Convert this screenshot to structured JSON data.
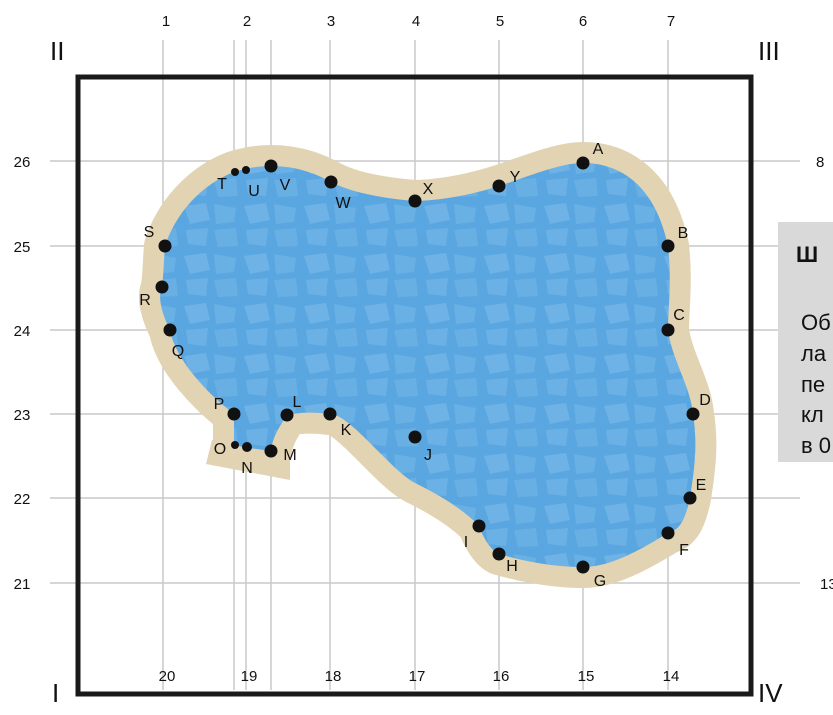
{
  "colors": {
    "water": "#5aa6e0",
    "water_tile": "#7dbcea",
    "deck": "#e2d3b3",
    "grid": "#c8c8c8",
    "frame": "#1a1a1a",
    "point": "#111111",
    "callout_bg": "#d9d9d9"
  },
  "corners": {
    "top_left": "II",
    "top_right": "III",
    "bottom_left": "I",
    "bottom_right": "IV"
  },
  "top_axis": [
    "1",
    "2",
    "3",
    "4",
    "5",
    "6",
    "7"
  ],
  "bottom_axis": [
    "20",
    "19",
    "18",
    "17",
    "16",
    "15",
    "14"
  ],
  "left_axis": [
    "26",
    "25",
    "24",
    "23",
    "22",
    "21"
  ],
  "right_axis": [
    "8",
    "13"
  ],
  "points": [
    "A",
    "B",
    "C",
    "D",
    "E",
    "F",
    "G",
    "H",
    "I",
    "J",
    "K",
    "L",
    "M",
    "N",
    "O",
    "P",
    "Q",
    "R",
    "S",
    "T",
    "U",
    "V",
    "W",
    "X",
    "Y"
  ],
  "callout": {
    "title": "Ш",
    "lines": [
      "Об",
      "ла",
      "пе",
      "кл",
      "в 0"
    ]
  }
}
